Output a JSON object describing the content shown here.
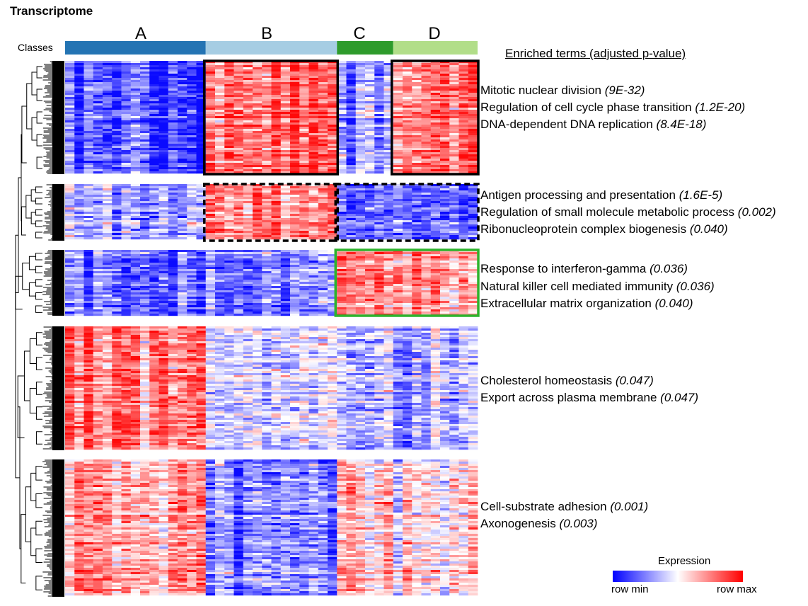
{
  "title": "Transcriptome",
  "classes_label": "Classes",
  "classes": [
    {
      "name": "A",
      "color": "#2474b3",
      "n_samples": 15
    },
    {
      "name": "B",
      "color": "#a6cde3",
      "n_samples": 14
    },
    {
      "name": "C",
      "color": "#2e9b2c",
      "n_samples": 6
    },
    {
      "name": "D",
      "color": "#b2de89",
      "n_samples": 9
    }
  ],
  "enriched_header": "Enriched terms (adjusted p-value)",
  "chart_data": {
    "type": "heatmap",
    "title": "Transcriptome",
    "color_scale": {
      "min_color": "#0000ff",
      "mid_color": "#ffffff",
      "max_color": "#ff0000",
      "min_label": "row min",
      "max_label": "row max"
    },
    "clusters": [
      {
        "name": "cluster-1",
        "mean_expression": {
          "A": -0.7,
          "B": 0.6,
          "C": -0.45,
          "D": 0.55
        },
        "highlight": {
          "classes": [
            "B"
          ],
          "style": "solid",
          "color": "#000000"
        },
        "highlight2": {
          "classes": [
            "D"
          ],
          "style": "solid",
          "color": "#000000"
        },
        "terms": [
          {
            "term": "Mitotic nuclear division",
            "pvalue": "(9E-32)"
          },
          {
            "term": "Regulation of cell cycle phase transition",
            "pvalue": "(1.2E-20)"
          },
          {
            "term": "DNA-dependent DNA replication",
            "pvalue": "(8.4E-18)"
          }
        ]
      },
      {
        "name": "cluster-2",
        "mean_expression": {
          "A": -0.3,
          "B": 0.55,
          "C": -0.6,
          "D": -0.55
        },
        "highlight": {
          "classes": [
            "B"
          ],
          "style": "dashed",
          "color": "#000000"
        },
        "highlight2": {
          "classes": [
            "C",
            "D"
          ],
          "style": "dashed",
          "color": "#000000"
        },
        "terms": [
          {
            "term": "Antigen processing and presentation",
            "pvalue": "(1.6E-5)"
          },
          {
            "term": "Regulation of small molecule metabolic process",
            "pvalue": "(0.002)"
          },
          {
            "term": "Ribonucleoprotein complex biogenesis",
            "pvalue": "(0.040)"
          }
        ]
      },
      {
        "name": "cluster-3",
        "mean_expression": {
          "A": -0.55,
          "B": -0.5,
          "C": 0.55,
          "D": 0.5
        },
        "highlight": {
          "classes": [
            "C",
            "D"
          ],
          "style": "solid",
          "color": "#2db32d"
        },
        "terms": [
          {
            "term": "Response to interferon-gamma",
            "pvalue": "(0.036)"
          },
          {
            "term": "Natural killer cell mediated immunity",
            "pvalue": "(0.036)"
          },
          {
            "term": "Extracellular matrix organization",
            "pvalue": "(0.040)"
          }
        ]
      },
      {
        "name": "cluster-4",
        "mean_expression": {
          "A": 0.5,
          "B": -0.15,
          "C": -0.3,
          "D": -0.4
        },
        "terms": [
          {
            "term": "Cholesterol homeostasis",
            "pvalue": "(0.047)"
          },
          {
            "term": "Export across plasma membrane",
            "pvalue": "(0.047)"
          }
        ]
      },
      {
        "name": "cluster-5",
        "mean_expression": {
          "A": 0.35,
          "B": -0.5,
          "C": 0.35,
          "D": 0.05
        },
        "terms": [
          {
            "term": "Cell-substrate adhesion",
            "pvalue": "(0.001)"
          },
          {
            "term": "Axonogenesis",
            "pvalue": "(0.003)"
          }
        ]
      }
    ]
  },
  "legend": {
    "title": "Expression",
    "min_label": "row min",
    "max_label": "row max"
  }
}
